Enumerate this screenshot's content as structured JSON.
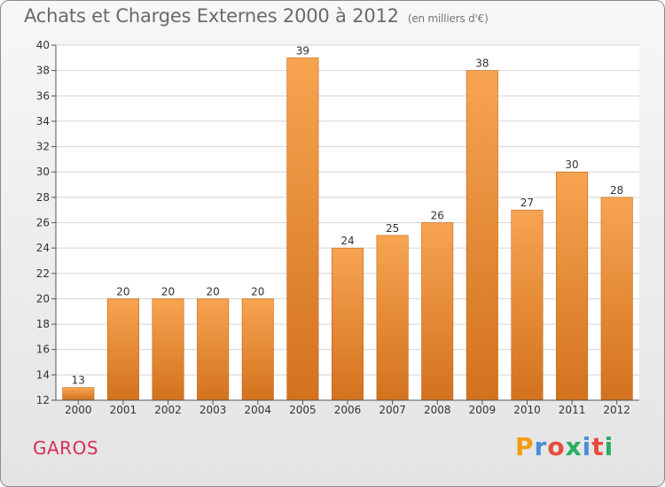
{
  "header": {
    "title": "Achats et Charges Externes 2000 à 2012",
    "unit_note": "(en milliers d'€)"
  },
  "footer": {
    "commune": "GAROS",
    "logo": {
      "letters": [
        "P",
        "r",
        "o",
        "x",
        "i",
        "t",
        "i"
      ],
      "colors": [
        "#f39c12",
        "#4a90d9",
        "#e74c3c",
        "#27ae60",
        "#4a90d9",
        "#e74c3c",
        "#27ae60"
      ]
    }
  },
  "chart_data": {
    "type": "bar",
    "categories": [
      "2000",
      "2001",
      "2002",
      "2003",
      "2004",
      "2005",
      "2006",
      "2007",
      "2008",
      "2009",
      "2010",
      "2011",
      "2012"
    ],
    "values": [
      13,
      20,
      20,
      20,
      20,
      39,
      24,
      25,
      26,
      38,
      27,
      30,
      28
    ],
    "ylim": [
      12,
      40
    ],
    "yticks": [
      12,
      14,
      16,
      18,
      20,
      22,
      24,
      26,
      28,
      30,
      32,
      34,
      36,
      38,
      40
    ],
    "grid": true,
    "bar_color_top": "#f7a451",
    "bar_color_bottom": "#d3721e",
    "bar_edge_color": "#c0651a"
  }
}
